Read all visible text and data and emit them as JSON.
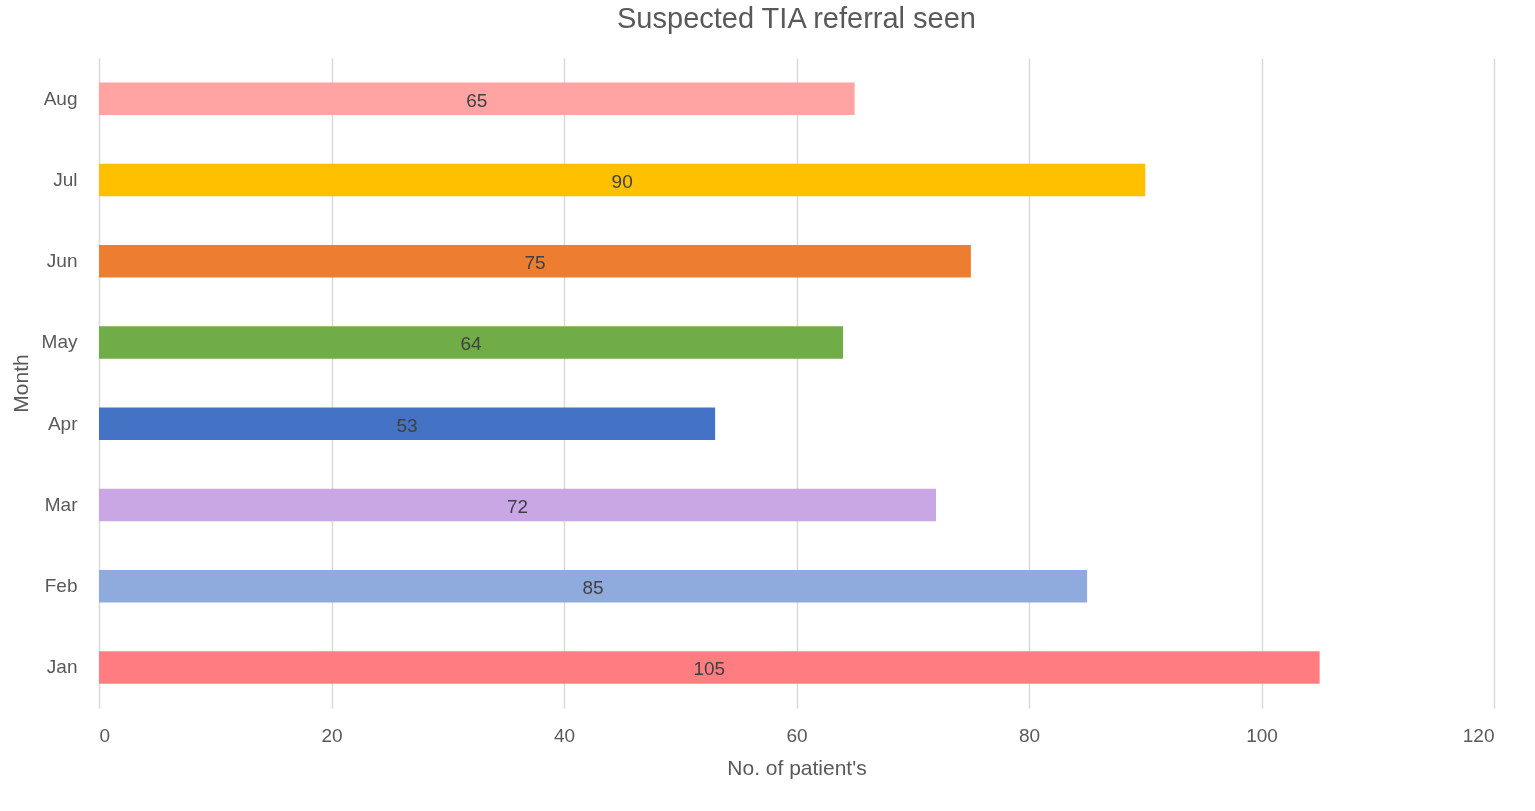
{
  "chart_data": {
    "type": "bar",
    "orientation": "horizontal",
    "title": "Suspected TIA referral seen",
    "xlabel": "No. of patient's",
    "ylabel": "Month",
    "categories": [
      "Aug",
      "Jul",
      "Jun",
      "May",
      "Apr",
      "Mar",
      "Feb",
      "Jan"
    ],
    "values": [
      65,
      90,
      75,
      64,
      53,
      72,
      85,
      105
    ],
    "colors": [
      "#ffa3a3",
      "#ffc000",
      "#ed7d31",
      "#70ad47",
      "#4472c4",
      "#c9a6e4",
      "#8faadc",
      "#ff7c80"
    ],
    "xlim": [
      0,
      120
    ],
    "xticks": [
      0,
      20,
      40,
      60,
      80,
      100,
      120
    ],
    "grid": "x",
    "data_labels": true,
    "legend": false
  }
}
